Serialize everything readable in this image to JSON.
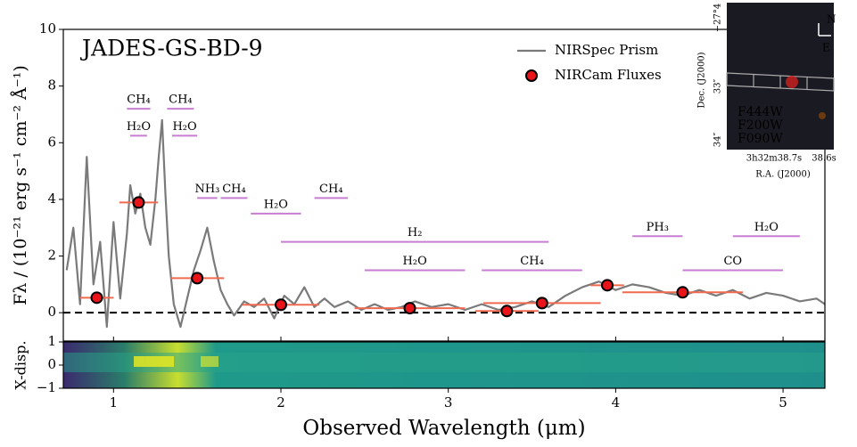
{
  "chart_data": [
    {
      "type": "line",
      "title": "JADES-GS-BD-9",
      "ylabel": "Fλ / (10⁻²¹ erg s⁻¹ cm⁻² Å⁻¹)",
      "xlim": [
        0.7,
        5.25
      ],
      "ylim": [
        -1,
        10
      ],
      "yticks": [
        0,
        2,
        4,
        6,
        8,
        10
      ],
      "hline": 0,
      "legend": "upper right",
      "series": [
        {
          "name": "NIRSpec Prism",
          "type": "line",
          "color": "#7a7a7a",
          "x": [
            0.72,
            0.76,
            0.8,
            0.84,
            0.88,
            0.92,
            0.96,
            1.0,
            1.04,
            1.08,
            1.1,
            1.13,
            1.16,
            1.19,
            1.22,
            1.25,
            1.27,
            1.29,
            1.31,
            1.33,
            1.36,
            1.4,
            1.44,
            1.48,
            1.52,
            1.56,
            1.6,
            1.64,
            1.68,
            1.72,
            1.78,
            1.84,
            1.9,
            1.96,
            2.02,
            2.08,
            2.14,
            2.2,
            2.26,
            2.32,
            2.4,
            2.48,
            2.56,
            2.64,
            2.72,
            2.8,
            2.9,
            3.0,
            3.1,
            3.2,
            3.3,
            3.4,
            3.5,
            3.6,
            3.7,
            3.8,
            3.9,
            4.0,
            4.1,
            4.2,
            4.3,
            4.4,
            4.5,
            4.6,
            4.7,
            4.8,
            4.9,
            5.0,
            5.1,
            5.2,
            5.25
          ],
          "values": [
            1.5,
            3,
            0.3,
            5.5,
            1,
            2.5,
            -0.5,
            3.2,
            0.5,
            2.8,
            4.5,
            3.5,
            4.2,
            3,
            2.4,
            4,
            5.5,
            6.8,
            4.2,
            2,
            0.3,
            -0.5,
            0.5,
            1.5,
            2.2,
            3.0,
            1.8,
            0.8,
            0.3,
            -0.1,
            0.4,
            0.2,
            0.5,
            -0.2,
            0.6,
            0.3,
            0.9,
            0.2,
            0.5,
            0.2,
            0.4,
            0.1,
            0.3,
            0.1,
            0.2,
            0.4,
            0.2,
            0.3,
            0.1,
            0.3,
            0.1,
            0.2,
            0.4,
            0.2,
            0.6,
            0.9,
            1.1,
            0.8,
            1.0,
            0.9,
            0.7,
            0.6,
            0.8,
            0.6,
            0.8,
            0.5,
            0.7,
            0.6,
            0.4,
            0.5,
            0.3
          ]
        },
        {
          "name": "NIRCam Fluxes",
          "type": "scatter",
          "color": "#e8141a",
          "errcolor": "#f06a50",
          "x": [
            0.9,
            1.15,
            1.5,
            2.0,
            2.77,
            3.35,
            3.56,
            3.95,
            4.4
          ],
          "xerr": [
            0.1,
            0.115,
            0.16,
            0.23,
            0.33,
            0.19,
            0.35,
            0.1,
            0.36
          ],
          "values": [
            0.53,
            3.89,
            1.22,
            0.28,
            0.16,
            0.06,
            0.34,
            0.97,
            0.72
          ]
        }
      ],
      "annotation_color": "#c77dd1",
      "annotations": [
        {
          "text": "CH₄",
          "x": [
            1.08,
            1.22
          ],
          "y": 7.2
        },
        {
          "text": "H₂O",
          "x": [
            1.1,
            1.2
          ],
          "y": 6.25
        },
        {
          "text": "CH₄",
          "x": [
            1.32,
            1.48
          ],
          "y": 7.2
        },
        {
          "text": "H₂O",
          "x": [
            1.35,
            1.5
          ],
          "y": 6.25
        },
        {
          "text": "NH₃",
          "x": [
            1.5,
            1.62
          ],
          "y": 4.05
        },
        {
          "text": "CH₄",
          "x": [
            1.64,
            1.8
          ],
          "y": 4.05
        },
        {
          "text": "H₂O",
          "x": [
            1.82,
            2.12
          ],
          "y": 3.5
        },
        {
          "text": "CH₄",
          "x": [
            2.2,
            2.4
          ],
          "y": 4.05
        },
        {
          "text": "H₂",
          "x": [
            2.0,
            3.6
          ],
          "y": 2.5
        },
        {
          "text": "H₂O",
          "x": [
            2.5,
            3.1
          ],
          "y": 1.5
        },
        {
          "text": "CH₄",
          "x": [
            3.2,
            3.8
          ],
          "y": 1.5
        },
        {
          "text": "PH₃",
          "x": [
            4.1,
            4.4
          ],
          "y": 2.7
        },
        {
          "text": "H₂O",
          "x": [
            4.7,
            5.1
          ],
          "y": 2.7
        },
        {
          "text": "CO",
          "x": [
            4.4,
            5.0
          ],
          "y": 1.5
        }
      ]
    },
    {
      "type": "heatmap",
      "ylabel": "X-disp.",
      "xlabel": "Observed Wavelength (μm)",
      "xlim": [
        0.7,
        5.25
      ],
      "xticks": [
        1,
        2,
        3,
        4,
        5
      ],
      "ylim": [
        -1,
        1
      ],
      "yticks": [
        {
          "value": -1,
          "label": "−1"
        },
        0,
        1
      ]
    }
  ],
  "inset": {
    "dec_label": "Dec. (J2000)",
    "ra_label": "R.A. (J2000)",
    "dec_ticks": [
      "−27°4",
      "33″",
      "34″"
    ],
    "ra_ticks": [
      "3h32m38.7s",
      "38.6s"
    ],
    "north": "N",
    "east": "E",
    "filters": [
      {
        "name": "F444W",
        "color": "#e02020"
      },
      {
        "name": "F200W",
        "color": "#2a8a2a"
      },
      {
        "name": "F090W",
        "color": "#3a6ad8"
      }
    ]
  }
}
